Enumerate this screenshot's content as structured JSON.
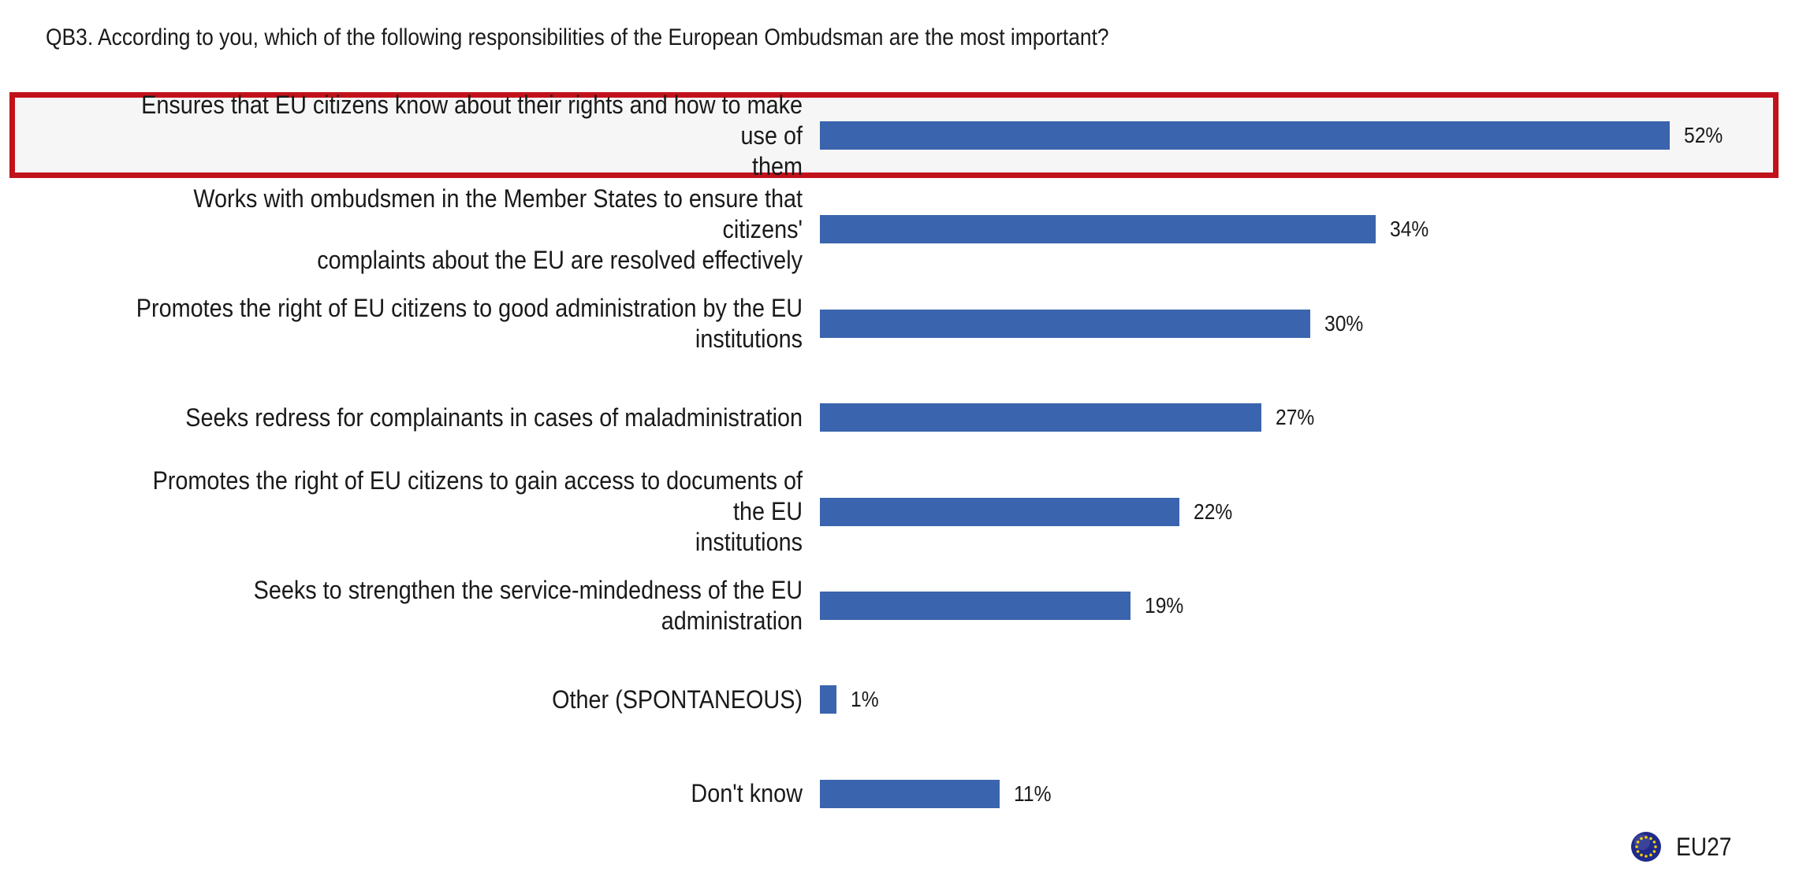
{
  "chart_data": {
    "type": "bar",
    "orientation": "horizontal",
    "title": "QB3. According to you, which of the following responsibilities of the European Ombudsman are the most important?",
    "categories": [
      "Ensures that EU citizens know about their rights and how to make use of them",
      "Works with ombudsmen in the Member States to ensure that citizens' complaints about the EU are resolved effectively",
      "Promotes the right of EU citizens to good administration by the EU institutions",
      "Seeks redress for complainants in cases of maladministration",
      "Promotes the right of EU citizens to gain access to documents of the EU institutions",
      "Seeks to strengthen the service-mindedness of the EU administration",
      "Other (SPONTANEOUS)",
      "Don't know"
    ],
    "series": [
      {
        "name": "EU27",
        "values": [
          52,
          34,
          30,
          27,
          22,
          19,
          1,
          11
        ],
        "labels": [
          "52%",
          "34%",
          "30%",
          "27%",
          "22%",
          "19%",
          "1%",
          "11%"
        ]
      }
    ],
    "xlim": [
      0,
      52
    ],
    "highlighted_category": 0,
    "legend": {
      "position": "bottom-right",
      "label": "EU27",
      "icon": "eu-flag-icon"
    },
    "grid": false,
    "colors": {
      "bar": "#3a64ad",
      "highlight_border": "#c1121b",
      "highlight_fill": "#f6f6f6",
      "eu_blue": "#1f2a8a",
      "eu_star": "#f5d000"
    }
  }
}
